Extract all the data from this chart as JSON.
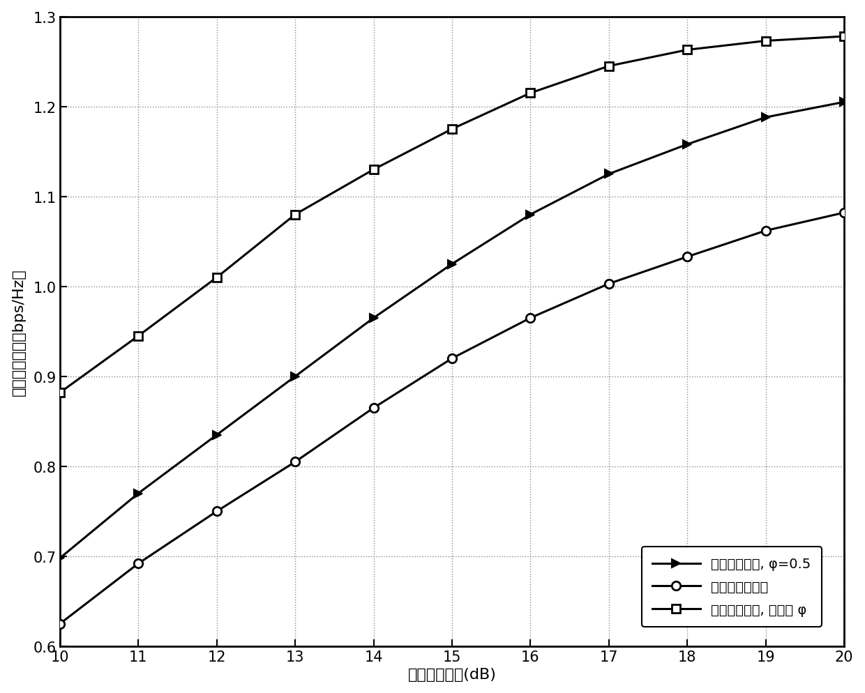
{
  "x": [
    10,
    11,
    12,
    13,
    14,
    15,
    16,
    17,
    18,
    19,
    20
  ],
  "series1_label": "中继干扰方案, φ=0.5",
  "series2_label": "接收端干扰方案",
  "series3_label": "中继干扰方案, 最优的 φ",
  "series1_y": [
    0.698,
    0.77,
    0.835,
    0.9,
    0.965,
    1.025,
    1.08,
    1.125,
    1.158,
    1.188,
    1.205
  ],
  "series2_y": [
    0.625,
    0.692,
    0.75,
    0.805,
    0.865,
    0.92,
    0.965,
    1.003,
    1.033,
    1.062,
    1.082
  ],
  "series3_y": [
    0.882,
    0.945,
    1.01,
    1.08,
    1.13,
    1.175,
    1.215,
    1.245,
    1.263,
    1.273,
    1.278
  ],
  "xlabel": "基站发送功率(dB)",
  "ylabel": "安全传输速率（bps/Hz）",
  "xlim": [
    10,
    20
  ],
  "ylim": [
    0.6,
    1.3
  ],
  "xticks": [
    10,
    11,
    12,
    13,
    14,
    15,
    16,
    17,
    18,
    19,
    20
  ],
  "yticks": [
    0.6,
    0.7,
    0.8,
    0.9,
    1.0,
    1.1,
    1.2,
    1.3
  ],
  "line_color": "#000000",
  "linewidth": 2.2,
  "markersize": 9,
  "grid_color": "#888888",
  "background_color": "#ffffff",
  "legend_loc": "lower right",
  "label_fontsize": 16,
  "tick_fontsize": 15,
  "legend_fontsize": 14
}
